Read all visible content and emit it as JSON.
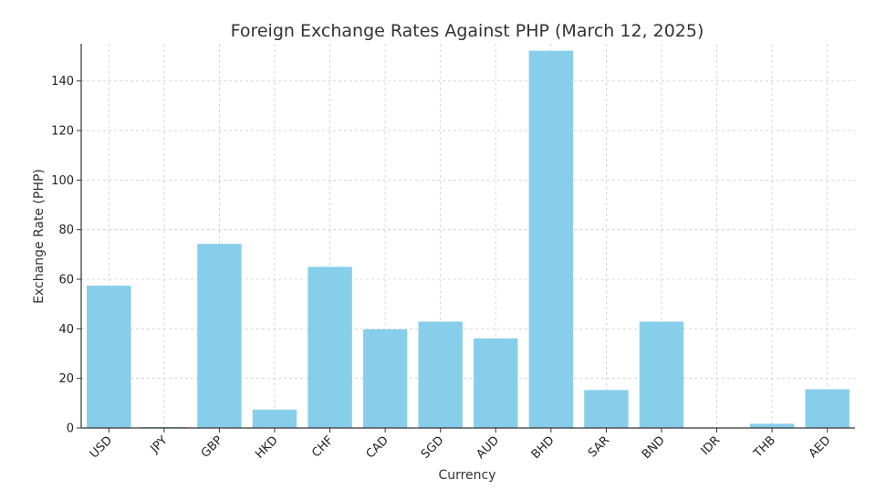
{
  "chart_data": {
    "type": "bar",
    "title": "Foreign Exchange Rates Against PHP (March 12, 2025)",
    "xlabel": "Currency",
    "ylabel": "Exchange Rate (PHP)",
    "categories": [
      "USD",
      "JPY",
      "GBP",
      "HKD",
      "CHF",
      "CAD",
      "SGD",
      "AUD",
      "BHD",
      "SAR",
      "BND",
      "IDR",
      "THB",
      "AED"
    ],
    "values": [
      57.4,
      0.39,
      74.3,
      7.4,
      65.0,
      39.8,
      42.9,
      36.1,
      152.2,
      15.3,
      42.9,
      0.0035,
      1.7,
      15.6
    ],
    "ylim": [
      0,
      155
    ],
    "yticks": [
      0,
      20,
      40,
      60,
      80,
      100,
      120,
      140
    ],
    "grid": true,
    "bar_color": "#87CEEB"
  }
}
